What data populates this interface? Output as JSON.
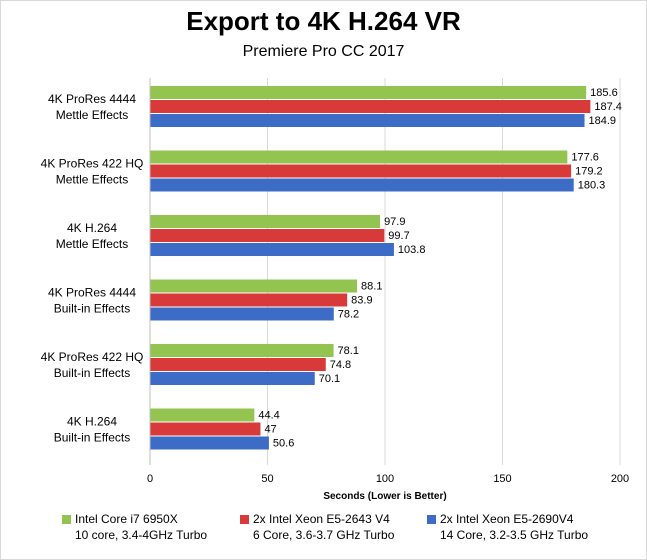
{
  "chart_data": {
    "type": "bar",
    "orientation": "horizontal",
    "title": "Export to 4K H.264 VR",
    "subtitle": "Premiere Pro CC 2017",
    "xlabel": "Seconds (Lower is Better)",
    "ylabel": "",
    "xlim": [
      0,
      200
    ],
    "xticks": [
      0,
      50,
      100,
      150,
      200
    ],
    "grid": true,
    "legend_position": "bottom",
    "categories": [
      [
        "4K ProRes 4444",
        "Mettle Effects"
      ],
      [
        "4K ProRes 422 HQ",
        "Mettle Effects"
      ],
      [
        "4K H.264",
        "Mettle Effects"
      ],
      [
        "4K ProRes 4444",
        "Built-in Effects"
      ],
      [
        "4K ProRes 422 HQ",
        "Built-in Effects"
      ],
      [
        "4K H.264",
        "Built-in Effects"
      ]
    ],
    "series": [
      {
        "name": "Intel Core i7 6950X",
        "detail": "10 core, 3.4-4GHz Turbo",
        "color": "#92c44f",
        "values": [
          185.6,
          177.6,
          97.9,
          88.1,
          78.1,
          44.4
        ],
        "labels": [
          "185.6",
          "177.6",
          "97.9",
          "88.1",
          "78.1",
          "44.4"
        ]
      },
      {
        "name": "2x Intel Xeon E5-2643 V4",
        "detail": "6 Core, 3.6-3.7 GHz Turbo",
        "color": "#d83a3a",
        "values": [
          187.4,
          179.2,
          99.7,
          83.9,
          74.8,
          47
        ],
        "labels": [
          "187.4",
          "179.2",
          "99.7",
          "83.9",
          "74.8",
          "47"
        ]
      },
      {
        "name": "2x Intel Xeon E5-2690V4",
        "detail": "14 Core, 3.2-3.5 GHz Turbo",
        "color": "#3d6cc6",
        "values": [
          184.9,
          180.3,
          103.8,
          78.2,
          70.1,
          50.6
        ],
        "labels": [
          "184.9",
          "180.3",
          "103.8",
          "78.2",
          "70.1",
          "50.6"
        ]
      }
    ]
  }
}
